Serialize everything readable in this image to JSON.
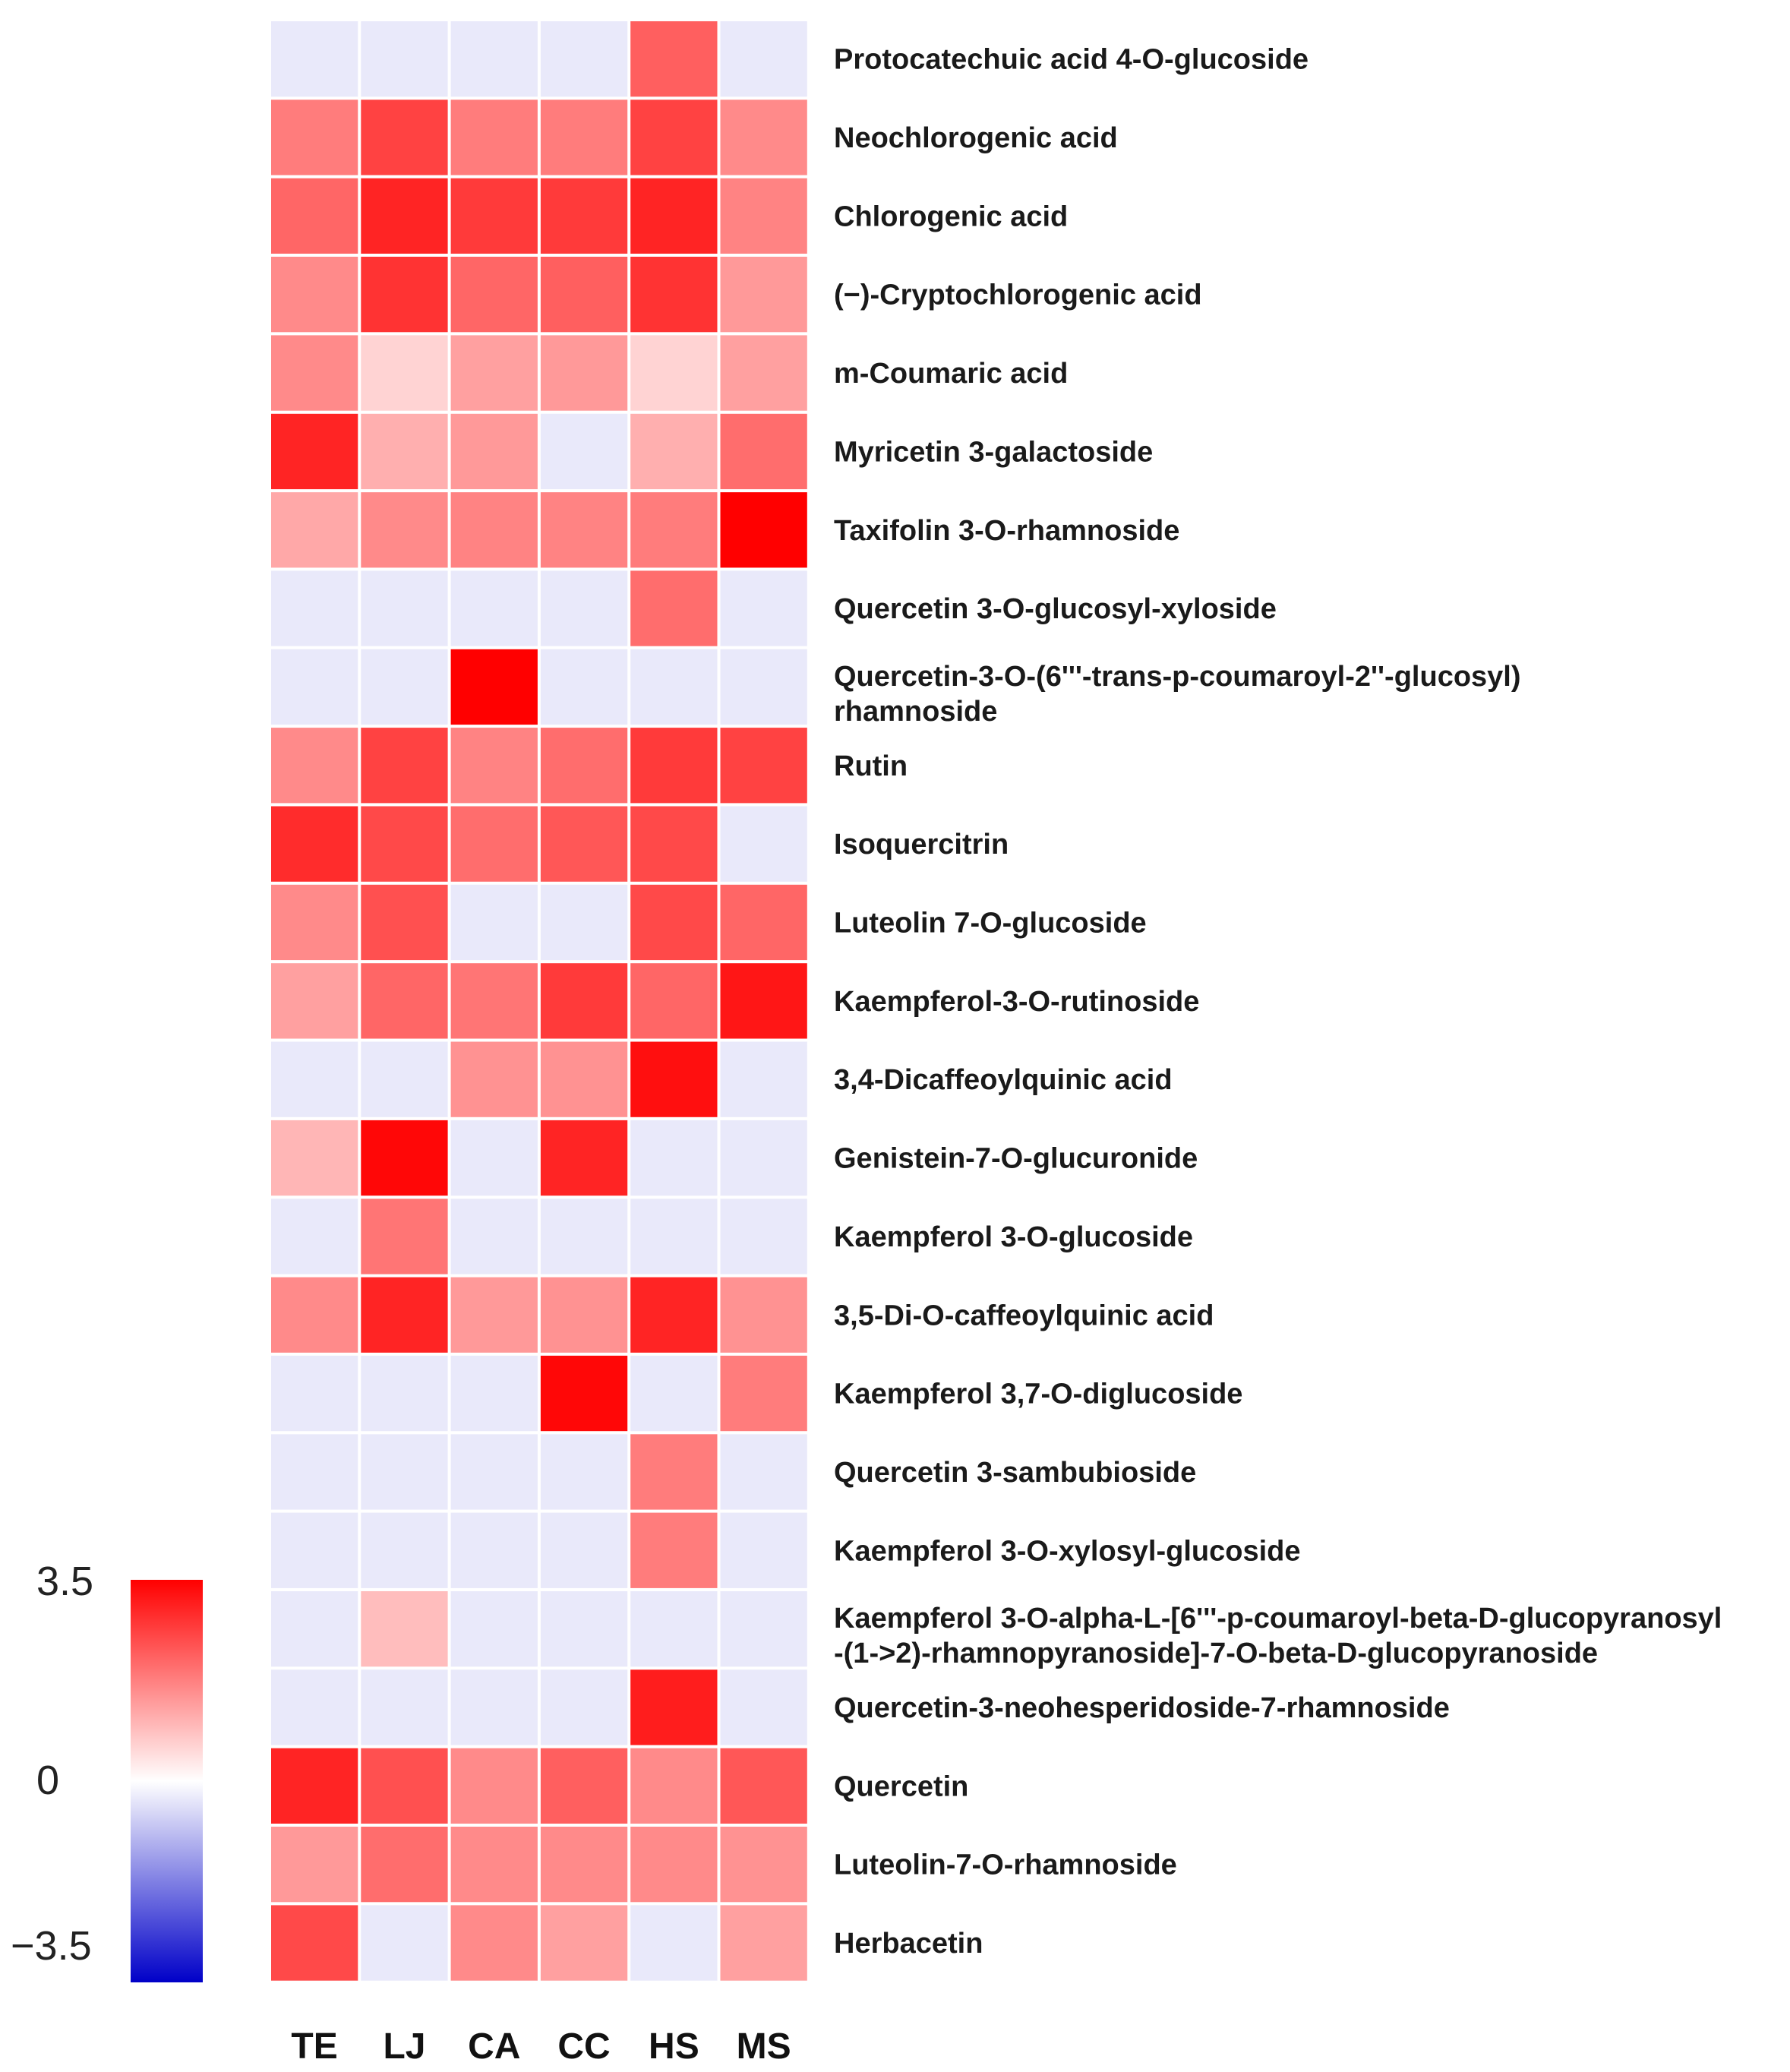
{
  "chart_data": {
    "type": "heatmap",
    "title": "",
    "columns": [
      "TE",
      "LJ",
      "CA",
      "CC",
      "HS",
      "MS"
    ],
    "rows": [
      {
        "label": [
          "Protocatechuic acid 4-O-glucoside"
        ],
        "values": [
          -0.3,
          -0.3,
          -0.3,
          -0.3,
          2.2,
          -0.3
        ]
      },
      {
        "label": [
          "Neochlorogenic acid"
        ],
        "values": [
          1.8,
          2.6,
          1.8,
          1.8,
          2.6,
          1.6
        ]
      },
      {
        "label": [
          "Chlorogenic acid"
        ],
        "values": [
          2.1,
          3.0,
          2.7,
          2.7,
          3.0,
          1.7
        ]
      },
      {
        "label": [
          "(−)-Cryptochlorogenic acid"
        ],
        "values": [
          1.6,
          2.8,
          2.1,
          2.2,
          2.8,
          1.4
        ]
      },
      {
        "label": [
          "m-Coumaric acid"
        ],
        "values": [
          1.6,
          0.6,
          1.3,
          1.4,
          0.6,
          1.3
        ]
      },
      {
        "label": [
          "Myricetin 3-galactoside"
        ],
        "values": [
          3.0,
          1.1,
          1.4,
          -0.3,
          1.1,
          2.0
        ]
      },
      {
        "label": [
          "Taxifolin 3-O-rhamnoside"
        ],
        "values": [
          1.2,
          1.6,
          1.7,
          1.7,
          1.8,
          3.5
        ]
      },
      {
        "label": [
          "Quercetin 3-O-glucosyl-xyloside"
        ],
        "values": [
          -0.3,
          -0.3,
          -0.3,
          -0.3,
          2.0,
          -0.3
        ]
      },
      {
        "label": [
          "Quercetin-3-O-(6'''-trans-p-coumaroyl-2''-glucosyl)",
          "rhamnoside"
        ],
        "values": [
          -0.3,
          -0.3,
          3.5,
          -0.3,
          -0.3,
          -0.3
        ]
      },
      {
        "label": [
          "Rutin"
        ],
        "values": [
          1.6,
          2.6,
          1.7,
          2.0,
          2.7,
          2.6
        ]
      },
      {
        "label": [
          "Isoquercitrin"
        ],
        "values": [
          2.9,
          2.5,
          2.0,
          2.3,
          2.5,
          -0.3
        ]
      },
      {
        "label": [
          "Luteolin 7-O-glucoside"
        ],
        "values": [
          1.6,
          2.4,
          -0.3,
          -0.3,
          2.5,
          2.1
        ]
      },
      {
        "label": [
          "Kaempferol-3-O-rutinoside"
        ],
        "values": [
          1.3,
          2.1,
          1.9,
          2.7,
          2.1,
          3.2
        ]
      },
      {
        "label": [
          "3,4-Dicaffeoylquinic acid"
        ],
        "values": [
          -0.3,
          -0.3,
          1.5,
          1.5,
          3.3,
          -0.3
        ]
      },
      {
        "label": [
          "Genistein-7-O-glucuronide"
        ],
        "values": [
          1.0,
          3.4,
          -0.3,
          3.0,
          -0.3,
          -0.3
        ]
      },
      {
        "label": [
          "Kaempferol 3-O-glucoside"
        ],
        "values": [
          -0.3,
          1.9,
          -0.3,
          -0.3,
          -0.3,
          -0.3
        ]
      },
      {
        "label": [
          "3,5-Di-O-caffeoylquinic acid"
        ],
        "values": [
          1.6,
          3.0,
          1.4,
          1.5,
          3.0,
          1.5
        ]
      },
      {
        "label": [
          "Kaempferol 3,7-O-diglucoside"
        ],
        "values": [
          -0.3,
          -0.3,
          -0.3,
          3.4,
          -0.3,
          1.8
        ]
      },
      {
        "label": [
          "Quercetin 3-sambubioside"
        ],
        "values": [
          -0.3,
          -0.3,
          -0.3,
          -0.3,
          1.8,
          -0.3
        ]
      },
      {
        "label": [
          "Kaempferol 3-O-xylosyl-glucoside"
        ],
        "values": [
          -0.3,
          -0.3,
          -0.3,
          -0.3,
          1.8,
          -0.3
        ]
      },
      {
        "label": [
          "Kaempferol 3-O-alpha-L-[6'''-p-coumaroyl-beta-D-glucopyranosyl",
          "-(1->2)-rhamnopyranoside]-7-O-beta-D-glucopyranoside"
        ],
        "values": [
          -0.3,
          0.9,
          -0.3,
          -0.3,
          -0.3,
          -0.3
        ]
      },
      {
        "label": [
          "Quercetin-3-neohesperidoside-7-rhamnoside"
        ],
        "values": [
          -0.3,
          -0.3,
          -0.3,
          -0.3,
          3.1,
          -0.3
        ]
      },
      {
        "label": [
          "Quercetin"
        ],
        "values": [
          3.0,
          2.4,
          1.6,
          2.2,
          1.6,
          2.3
        ]
      },
      {
        "label": [
          "Luteolin-7-O-rhamnoside"
        ],
        "values": [
          1.4,
          2.0,
          1.6,
          1.6,
          1.6,
          1.5
        ]
      },
      {
        "label": [
          "Herbacetin"
        ],
        "values": [
          2.5,
          -0.3,
          1.6,
          1.3,
          -0.3,
          1.3
        ]
      }
    ],
    "colorbar": {
      "min": -3.5,
      "mid": 0,
      "max": 3.5,
      "tick_labels": [
        "3.5",
        "0",
        "−3.5"
      ],
      "min_color": "#0000c8",
      "mid_color": "#ffffff",
      "max_color": "#ff0000",
      "position": "bottom-left"
    },
    "grid_line_color": "#ffffff"
  }
}
